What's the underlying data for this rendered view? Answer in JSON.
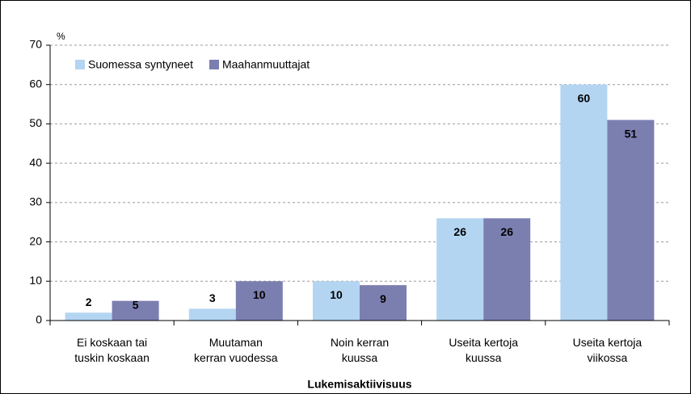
{
  "chart_data": {
    "type": "bar",
    "y_unit": "%",
    "x_label": "Lukemisaktiivisuus",
    "categories": [
      "Ei koskaan tai\ntuskin koskaan",
      "Muutaman\nkerran vuodessa",
      "Noin kerran\nkuussa",
      "Useita kertoja\nkuussa",
      "Useita kertoja\nviikossa"
    ],
    "series": [
      {
        "name": "Suomessa syntyneet",
        "color": "#b3d5f2",
        "label_color": "#000000",
        "values": [
          2,
          3,
          10,
          26,
          60
        ]
      },
      {
        "name": "Maahanmuuttajat",
        "color": "#7b7fb0",
        "label_color": "#ffffff",
        "values": [
          5,
          10,
          9,
          26,
          51
        ]
      }
    ],
    "ylim": [
      0,
      70
    ],
    "yticks": [
      0,
      10,
      20,
      30,
      40,
      50,
      60,
      70
    ],
    "grid": true,
    "legend": "top-left"
  }
}
